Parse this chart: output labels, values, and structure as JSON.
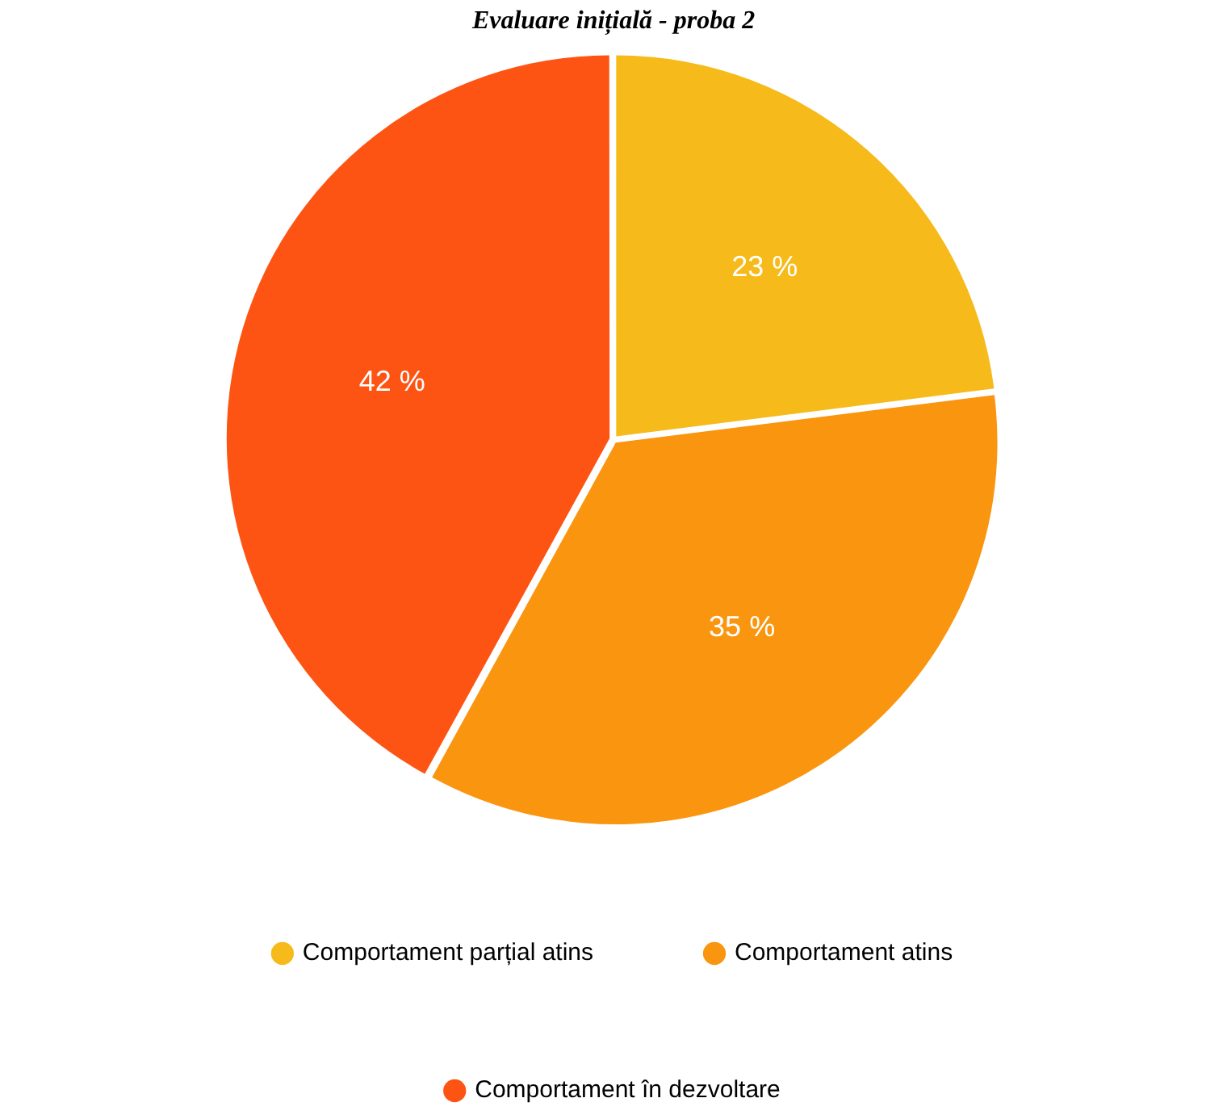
{
  "chart_data": {
    "type": "pie",
    "title": "Evaluare inițială - proba 2",
    "categories": [
      "Comportament parțial atins",
      "Comportament atins",
      "Comportament în dezvoltare"
    ],
    "values": [
      23,
      35,
      42
    ],
    "colors": [
      "#f6bb1a",
      "#fa950f",
      "#fd5414"
    ],
    "value_labels": [
      "23 %",
      "35 %",
      "42 %"
    ],
    "legend": "bottom"
  }
}
